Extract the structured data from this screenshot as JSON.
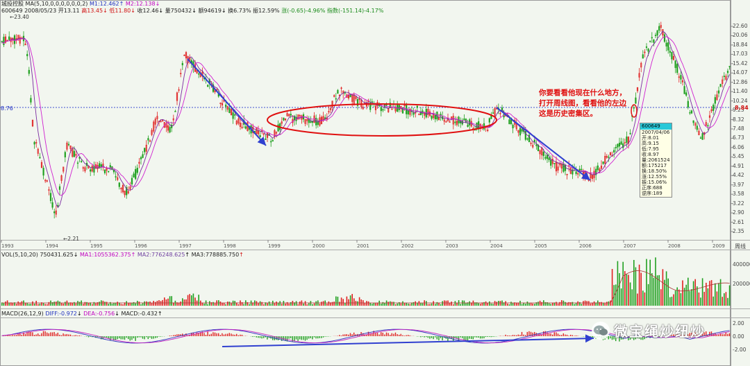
{
  "header": {
    "name": "城投控股",
    "ma_params": "MA(5,10,0,0,0,0,0,0,2)",
    "m1": "M1:12.462",
    "m2": "M2:12.138",
    "code": "600649",
    "date": "2008/05/23",
    "open": "开13.11",
    "high": "高13.45",
    "low": "低11.80",
    "close": "收12.46",
    "volume": "量750432",
    "amount": "额94619",
    "turnover": "换6.73%",
    "amplitude": "振12.59%",
    "change": "涨(-0.65)-4.96%",
    "index": "指数(-151.14)-4.17%"
  },
  "price_axis": [
    "22.60",
    "20.06",
    "18.84",
    "17.03",
    "15.42",
    "14.07",
    "12.86",
    "11.40",
    "10.24",
    "9.23",
    "8.32",
    "7.48",
    "6.73",
    "6.06",
    "5.45",
    "4.91",
    "4.42",
    "3.97",
    "3.58",
    "3.22",
    "2.90",
    "2.61",
    "2.35"
  ],
  "years": [
    "1993",
    "1994",
    "1995",
    "1996",
    "1997",
    "1998",
    "1999",
    "2000",
    "2001",
    "2002",
    "2003",
    "2004",
    "2005",
    "2006",
    "2007",
    "2008",
    "2009"
  ],
  "year_unit": "周线",
  "current_price_tag": "8.84",
  "left_price_tag": "8.76",
  "high_marker": "23.40",
  "low_marker": "2.21",
  "annotation": [
    "你要看看他现在什么地方，",
    "打开周线图，看看他的左边",
    "这是历史密集区。"
  ],
  "tooltip": {
    "code": "600649",
    "rows": [
      "2007/04/06",
      "开:8.01",
      "高:9.15",
      "低:7.95",
      "收:8.97",
      "量:2061524",
      "额:175217",
      "换:18.50%",
      "涨:12.55%",
      "振:15.06%",
      "正序:688",
      "逆序:189"
    ]
  },
  "volume_panel": {
    "params": "VOL(5,10,20)",
    "value": "750431.625",
    "ma1": "MA1:1055362.375",
    "ma2": "MA2:776248.625",
    "ma3": "MA3:778885.750",
    "axis": [
      "400000",
      "200000"
    ]
  },
  "macd_panel": {
    "params": "MACD(26,12,9)",
    "diff": "DIFF:-0.972",
    "dea": "DEA:-0.756",
    "macd": "MACD:-0.432",
    "axis": [
      "2.00",
      "0.00",
      "-2.00"
    ]
  },
  "watermark": "微宝绳炒纽炒",
  "colors": {
    "up": "#e02020",
    "down": "#20a020",
    "ma1": "#7a2aa0",
    "ma2": "#d020d0",
    "annotation": "#e01010",
    "arrow": "#3040d0",
    "tooltip_head": "#28c8d8"
  }
}
